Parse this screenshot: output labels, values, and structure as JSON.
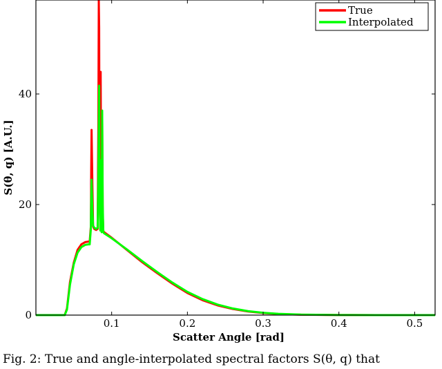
{
  "chart_data": {
    "type": "line",
    "title": "",
    "xlabel": "Scatter Angle [rad]",
    "ylabel": "S(θ, q) [A.U.]",
    "xlim": [
      0.0,
      0.527
    ],
    "ylim": [
      0,
      57
    ],
    "xticks": [
      0.1,
      0.2,
      0.3,
      0.4,
      0.5
    ],
    "xtick_labels": [
      "0.1",
      "0.2",
      "0.3",
      "0.4",
      "0.5"
    ],
    "yticks": [
      0,
      20,
      40
    ],
    "ytick_labels": [
      "0",
      "20",
      "40"
    ],
    "grid": false,
    "legend_position": "top-right",
    "series": [
      {
        "name": "True",
        "color": "#ff0000",
        "x": [
          0.0,
          0.038,
          0.041,
          0.045,
          0.05,
          0.055,
          0.06,
          0.065,
          0.0695,
          0.071,
          0.0725,
          0.073,
          0.0735,
          0.0745,
          0.0755,
          0.077,
          0.0795,
          0.0815,
          0.0825,
          0.083,
          0.0835,
          0.084,
          0.085,
          0.0855,
          0.0862,
          0.0868,
          0.0875,
          0.0882,
          0.089,
          0.09,
          0.1,
          0.12,
          0.14,
          0.16,
          0.18,
          0.2,
          0.22,
          0.24,
          0.26,
          0.28,
          0.3,
          0.32,
          0.35,
          0.4,
          0.45,
          0.5,
          0.527
        ],
        "y": [
          0,
          0,
          1.2,
          6,
          9.5,
          11.8,
          12.8,
          13.2,
          13.3,
          13.3,
          16,
          26,
          33.5,
          24,
          16,
          15.6,
          15.4,
          15.6,
          35,
          57,
          52,
          22,
          15.5,
          44,
          18,
          15.2,
          36,
          18.5,
          15.2,
          15,
          14,
          11.8,
          9.6,
          7.6,
          5.7,
          4.0,
          2.7,
          1.75,
          1.1,
          0.65,
          0.38,
          0.2,
          0.08,
          0.02,
          0.005,
          0.0,
          0.0
        ]
      },
      {
        "name": "Interpolated",
        "color": "#00ff00",
        "x": [
          0.0,
          0.038,
          0.041,
          0.045,
          0.05,
          0.055,
          0.06,
          0.065,
          0.0695,
          0.071,
          0.0725,
          0.073,
          0.0735,
          0.0745,
          0.0755,
          0.077,
          0.0795,
          0.0815,
          0.0825,
          0.083,
          0.0835,
          0.084,
          0.085,
          0.0855,
          0.0862,
          0.0868,
          0.0875,
          0.0882,
          0.089,
          0.09,
          0.1,
          0.12,
          0.14,
          0.16,
          0.18,
          0.2,
          0.22,
          0.24,
          0.26,
          0.28,
          0.3,
          0.32,
          0.35,
          0.4,
          0.45,
          0.5,
          0.527
        ],
        "y": [
          0,
          0,
          1.0,
          5.5,
          9.2,
          11.3,
          12.3,
          12.7,
          12.8,
          12.8,
          15.5,
          21,
          24.5,
          19,
          16.2,
          15.8,
          15.6,
          15.8,
          26,
          34,
          41.5,
          24,
          15.3,
          28,
          17,
          15.0,
          37,
          20,
          15.0,
          14.8,
          13.9,
          11.9,
          9.8,
          7.8,
          5.9,
          4.2,
          2.9,
          1.9,
          1.2,
          0.72,
          0.42,
          0.23,
          0.09,
          0.02,
          0.005,
          0.0,
          0.0
        ]
      }
    ]
  },
  "caption": "Fig. 2: True and angle-interpolated spectral factors S(θ, q) that"
}
